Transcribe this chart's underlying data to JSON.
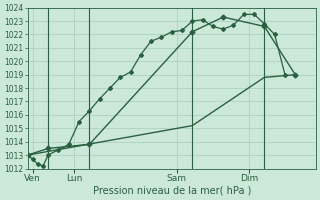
{
  "xlabel": "Pression niveau de la mer( hPa )",
  "background_color": "#cce8d8",
  "plot_bg_color": "#cce8d8",
  "grid_color": "#a8ccbc",
  "line_color": "#2a6040",
  "ylim": [
    1012,
    1024
  ],
  "ytick_step": 1,
  "xlim": [
    0,
    28
  ],
  "day_labels": [
    "Ven",
    "Lun",
    "Sam",
    "Dim"
  ],
  "day_positions": [
    0.5,
    4.5,
    14.5,
    21.5
  ],
  "vline_positions": [
    2,
    6,
    16,
    23
  ],
  "series1_x": [
    0,
    0.5,
    1,
    1.5,
    2,
    3,
    4,
    5,
    6,
    7,
    8,
    9,
    10,
    11,
    12,
    13,
    14,
    15,
    16,
    17,
    18,
    19,
    20,
    21,
    22,
    23,
    24,
    25
  ],
  "series1_y": [
    1013.0,
    1012.7,
    1012.3,
    1012.2,
    1013.0,
    1013.4,
    1013.8,
    1015.5,
    1016.3,
    1017.2,
    1018.0,
    1018.8,
    1019.2,
    1020.5,
    1021.5,
    1021.8,
    1022.2,
    1022.3,
    1023.0,
    1023.1,
    1022.6,
    1022.4,
    1022.7,
    1023.5,
    1023.5,
    1022.8,
    1022.0,
    1019.0
  ],
  "series2_x": [
    0,
    2,
    6,
    16,
    19,
    23,
    26
  ],
  "series2_y": [
    1013.0,
    1013.5,
    1013.8,
    1022.2,
    1023.3,
    1022.6,
    1019.0
  ],
  "series3_x": [
    0,
    16,
    23,
    26
  ],
  "series3_y": [
    1013.0,
    1015.2,
    1018.8,
    1019.0
  ],
  "xlabel_fontsize": 7,
  "ytick_fontsize": 5.5,
  "xtick_fontsize": 6.5
}
